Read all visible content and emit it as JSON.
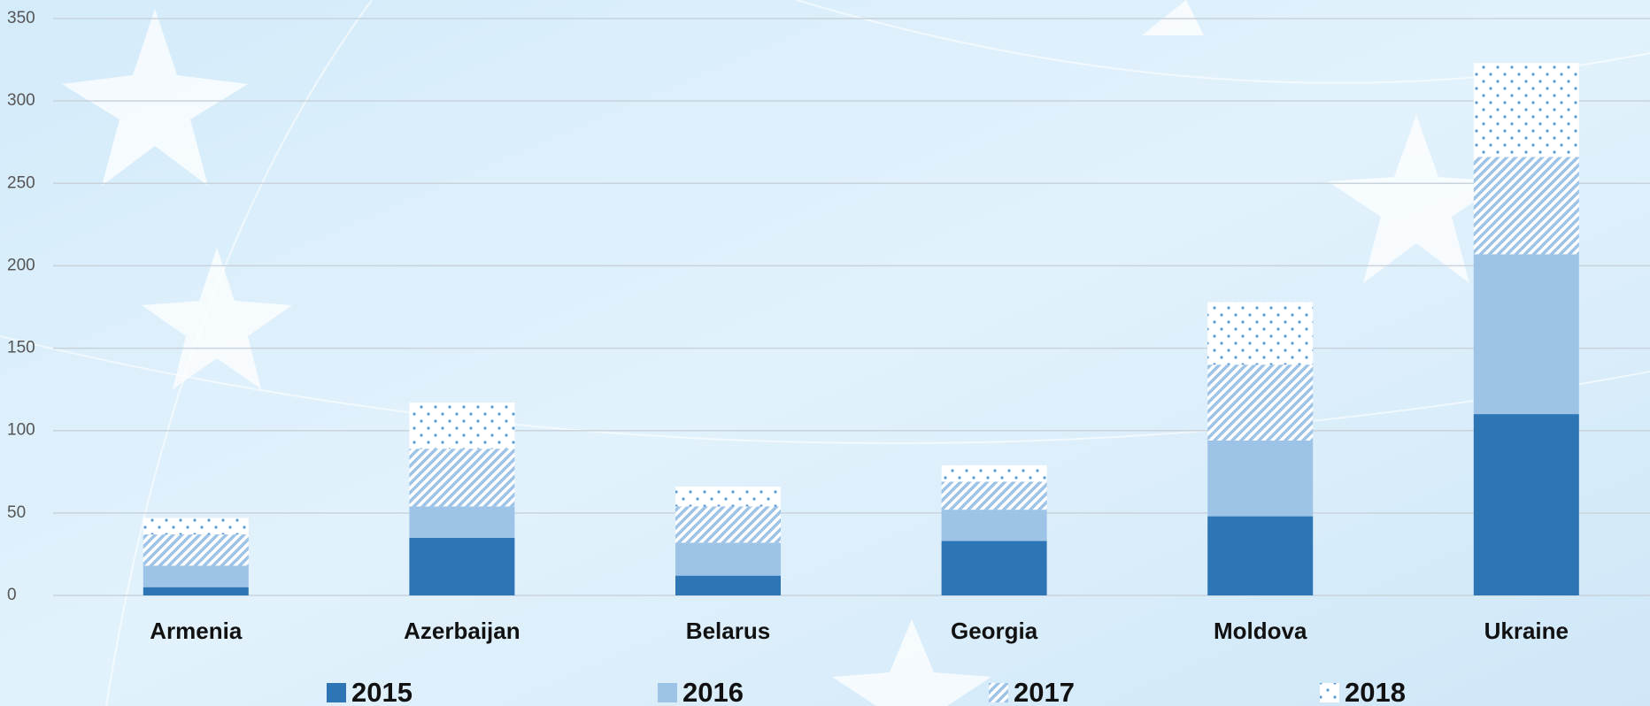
{
  "chart_data": {
    "type": "stacked_bar",
    "categories": [
      "Armenia",
      "Azerbaijan",
      "Belarus",
      "Georgia",
      "Moldova",
      "Ukraine"
    ],
    "series": [
      {
        "name": "2015",
        "color": "#2e75b6",
        "pattern": "solid",
        "values": [
          5,
          35,
          12,
          33,
          48,
          110
        ]
      },
      {
        "name": "2016",
        "color": "#9dc3e6",
        "pattern": "solid",
        "values": [
          13,
          19,
          20,
          19,
          46,
          97
        ]
      },
      {
        "name": "2017",
        "color": "#9dc3e6",
        "pattern": "stripes",
        "values": [
          19,
          35,
          22,
          17,
          46,
          59
        ]
      },
      {
        "name": "2018",
        "color": "#5b9bd5",
        "pattern": "dots",
        "values": [
          10,
          28,
          12,
          10,
          38,
          57
        ]
      }
    ],
    "ylim": [
      0,
      350
    ],
    "yticks": [
      0,
      50,
      100,
      150,
      200,
      250,
      300,
      350
    ],
    "grid": true,
    "legend": "bottom"
  }
}
